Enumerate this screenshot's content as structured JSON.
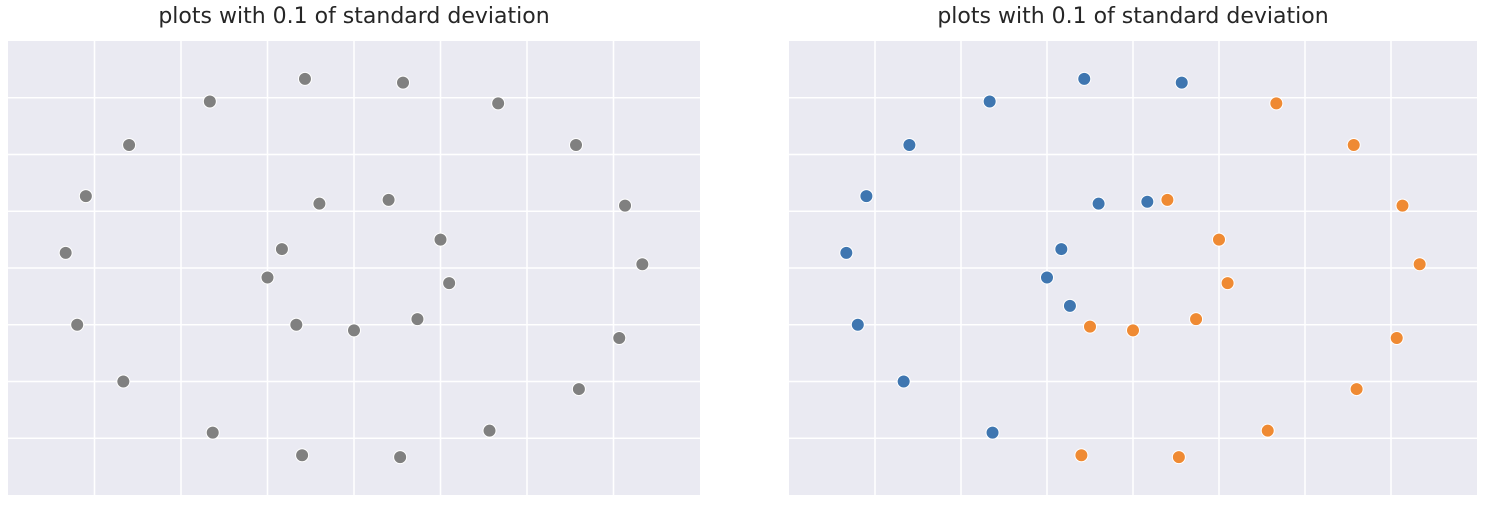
{
  "chart_data": [
    {
      "type": "scatter",
      "title": "plots with 0.1 of standard deviation",
      "xlabel": "",
      "ylabel": "",
      "grid": true,
      "tick_labels": false,
      "xlim": [
        -1.2,
        1.2
      ],
      "ylim": [
        -1.2,
        1.2
      ],
      "point_color": "#808080",
      "series": [
        {
          "points": [
            [
              -1.0,
              0.08
            ],
            [
              -0.93,
              0.38
            ],
            [
              -0.78,
              0.65
            ],
            [
              -0.5,
              0.88
            ],
            [
              -0.17,
              1.0
            ],
            [
              0.17,
              0.98
            ],
            [
              0.5,
              0.87
            ],
            [
              0.77,
              0.65
            ],
            [
              0.94,
              0.33
            ],
            [
              1.0,
              0.02
            ],
            [
              0.92,
              -0.37
            ],
            [
              0.78,
              -0.64
            ],
            [
              0.47,
              -0.86
            ],
            [
              0.16,
              -1.0
            ],
            [
              -0.18,
              -0.99
            ],
            [
              -0.49,
              -0.87
            ],
            [
              -0.8,
              -0.6
            ],
            [
              -0.96,
              -0.3
            ],
            [
              -0.25,
              0.1
            ],
            [
              -0.12,
              0.34
            ],
            [
              0.12,
              0.36
            ],
            [
              0.3,
              0.15
            ],
            [
              0.33,
              -0.08
            ],
            [
              0.22,
              -0.27
            ],
            [
              0.0,
              -0.33
            ],
            [
              -0.2,
              -0.3
            ],
            [
              -0.3,
              -0.05
            ]
          ]
        }
      ]
    },
    {
      "type": "scatter",
      "title": "plots with 0.1 of standard deviation",
      "xlabel": "",
      "ylabel": "",
      "grid": true,
      "tick_labels": false,
      "xlim": [
        -1.2,
        1.2
      ],
      "ylim": [
        -1.2,
        1.2
      ],
      "series": [
        {
          "color": "#3f76b0",
          "points": [
            [
              -1.0,
              0.08
            ],
            [
              -0.93,
              0.38
            ],
            [
              -0.78,
              0.65
            ],
            [
              -0.5,
              0.88
            ],
            [
              -0.17,
              1.0
            ],
            [
              0.17,
              0.98
            ],
            [
              -0.96,
              -0.3
            ],
            [
              -0.8,
              -0.6
            ],
            [
              -0.49,
              -0.87
            ],
            [
              -0.25,
              0.1
            ],
            [
              -0.12,
              0.34
            ],
            [
              0.05,
              0.35
            ],
            [
              -0.3,
              -0.05
            ],
            [
              -0.22,
              -0.2
            ]
          ]
        },
        {
          "color": "#ef8a33",
          "points": [
            [
              0.5,
              0.87
            ],
            [
              0.77,
              0.65
            ],
            [
              0.94,
              0.33
            ],
            [
              1.0,
              0.02
            ],
            [
              0.92,
              -0.37
            ],
            [
              0.78,
              -0.64
            ],
            [
              0.47,
              -0.86
            ],
            [
              0.16,
              -1.0
            ],
            [
              -0.18,
              -0.99
            ],
            [
              0.12,
              0.36
            ],
            [
              0.3,
              0.15
            ],
            [
              0.33,
              -0.08
            ],
            [
              0.22,
              -0.27
            ],
            [
              0.0,
              -0.33
            ],
            [
              -0.15,
              -0.31
            ]
          ]
        }
      ]
    }
  ]
}
